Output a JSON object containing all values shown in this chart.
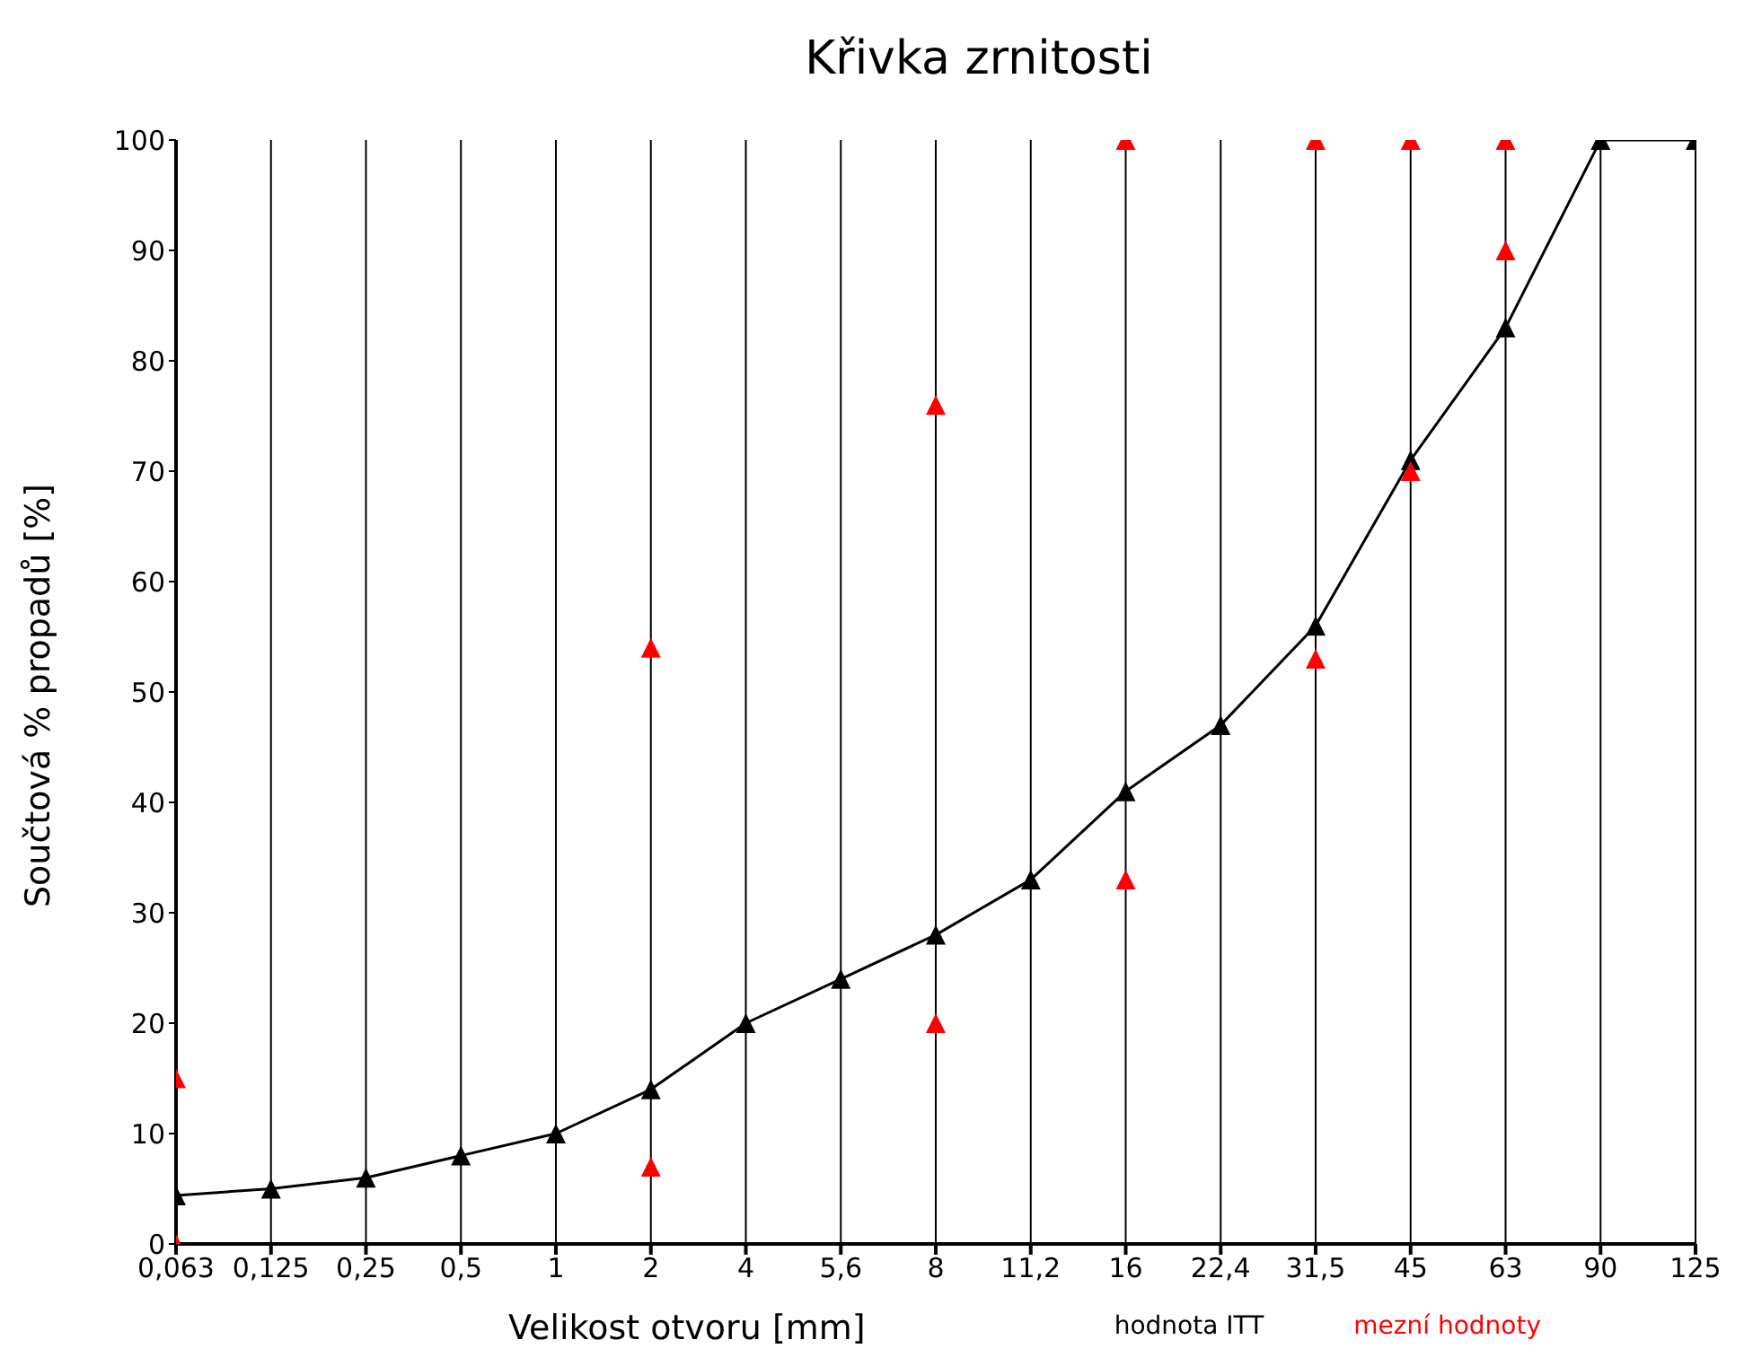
{
  "chart_data": {
    "type": "line",
    "title": "Křivka zrnitosti",
    "xlabel": "Velikost otvoru [mm]",
    "ylabel": "Součtová % propadů [%]",
    "categories": [
      "0,063",
      "0,125",
      "0,25",
      "0,5",
      "1",
      "2",
      "4",
      "5,6",
      "8",
      "11,2",
      "16",
      "22,4",
      "31,5",
      "45",
      "63",
      "90",
      "125"
    ],
    "series": [
      {
        "name": "hodnota ITT",
        "color": "#000000",
        "values": [
          4.4,
          5,
          6,
          8,
          10,
          14,
          20,
          24,
          28,
          33,
          41,
          47,
          56,
          71,
          83,
          100,
          100
        ]
      },
      {
        "name": "mezní hodnoty",
        "type": "scatter",
        "color": "#ff0000",
        "values": [
          0,
          null,
          null,
          null,
          null,
          7,
          null,
          null,
          20,
          null,
          33,
          null,
          53,
          70,
          90,
          null,
          null
        ]
      },
      {
        "type": "scatter",
        "color": "#ff0000",
        "values": [
          15,
          null,
          null,
          null,
          null,
          54,
          null,
          null,
          76,
          null,
          100,
          null,
          100,
          100,
          100,
          null,
          null
        ]
      }
    ],
    "ylim": [
      0,
      100
    ],
    "yticks": [
      0,
      10,
      20,
      30,
      40,
      50,
      60,
      70,
      80,
      90,
      100
    ],
    "grid": "x",
    "legend": "bottom right",
    "marker": "triangle",
    "line_style": "solid"
  }
}
